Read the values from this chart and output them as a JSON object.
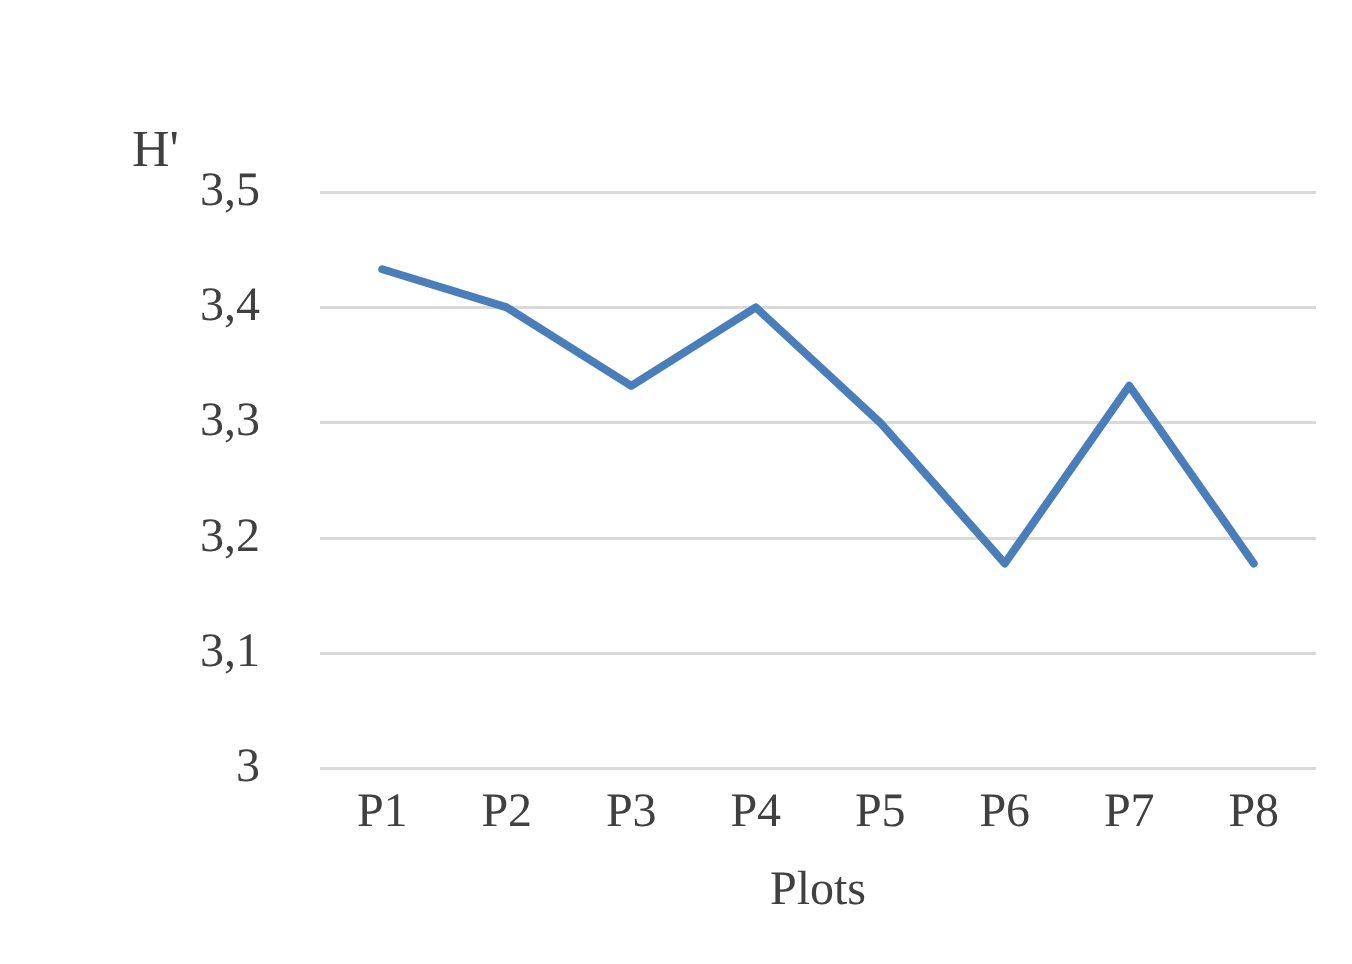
{
  "chart_data": {
    "type": "line",
    "ylabel": "H'",
    "xlabel": "Plots",
    "categories": [
      "P1",
      "P2",
      "P3",
      "P4",
      "P5",
      "P6",
      "P7",
      "P8"
    ],
    "series": [
      {
        "color": "#4a7ebb",
        "values": [
          3.433,
          3.4,
          3.332,
          3.4,
          3.3,
          3.178,
          3.332,
          3.178
        ]
      }
    ],
    "ylim": [
      3,
      3.5
    ],
    "yticks": [
      {
        "value": 3,
        "label": "3"
      },
      {
        "value": 3.1,
        "label": "3,1"
      },
      {
        "value": 3.2,
        "label": "3,2"
      },
      {
        "value": 3.3,
        "label": "3,3"
      },
      {
        "value": 3.4,
        "label": "3,4"
      },
      {
        "value": 3.5,
        "label": "3,5"
      }
    ],
    "grid": "y",
    "legend": false,
    "marker": "none",
    "line_style": "solid"
  }
}
